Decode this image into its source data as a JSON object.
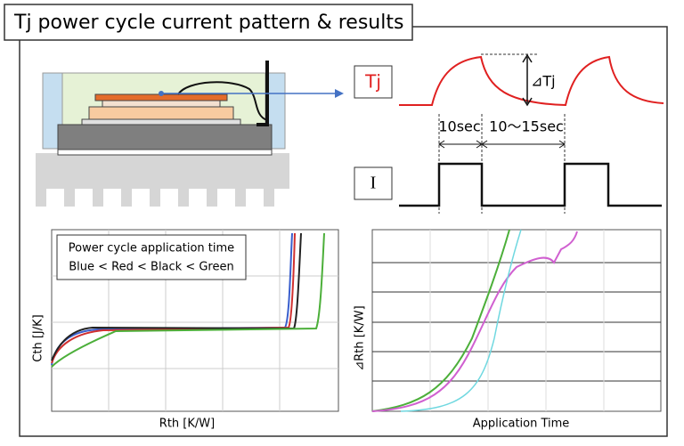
{
  "header": {
    "title": "Tj power cycle current pattern & results"
  },
  "waveform": {
    "tj_label": "Tj",
    "delta_label": "⊿Tj",
    "on_time": "10sec",
    "off_time": "10～15sec",
    "current_label": "I"
  },
  "left_chart": {
    "legend_title": "Power cycle application time",
    "legend_order": "Blue < Red < Black < Green",
    "y_label": "Cth [J/K]",
    "x_label": "Rth [K/W]"
  },
  "right_chart": {
    "y_label": "⊿Rth [K/W]",
    "x_label": "Application Time"
  }
}
